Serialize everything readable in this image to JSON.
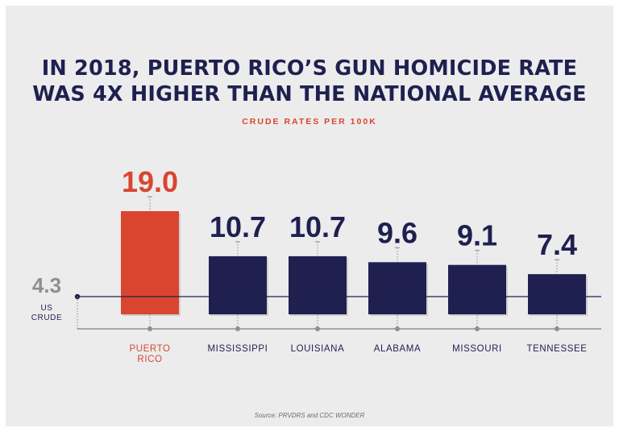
{
  "title_line1": "IN 2018, PUERTO RICO’S GUN HOMICIDE RATE",
  "title_line2": "WAS 4X HIGHER THAN THE NATIONAL AVERAGE",
  "subtitle": "CRUDE RATES PER 100K",
  "source": "Source: PRVDRS and CDC WONDER",
  "colors": {
    "highlight": "#d9452f",
    "bar": "#1f2050",
    "background": "#ececed"
  },
  "chart_data": {
    "type": "bar",
    "title": "IN 2018, PUERTO RICO’S GUN HOMICIDE RATE WAS 4X HIGHER THAN THE NATIONAL AVERAGE",
    "subtitle": "CRUDE RATES PER 100K",
    "categories": [
      [
        "PUERTO",
        "RICO"
      ],
      [
        "MISSISSIPPI"
      ],
      [
        "LOUISIANA"
      ],
      [
        "ALABAMA"
      ],
      [
        "MISSOURI"
      ],
      [
        "TENNESSEE"
      ]
    ],
    "values": [
      19.0,
      10.7,
      10.7,
      9.6,
      9.1,
      7.4
    ],
    "value_labels": [
      "19.0",
      "10.7",
      "10.7",
      "9.6",
      "9.1",
      "7.4"
    ],
    "highlight_index": 0,
    "reference_line": {
      "value": 4.3,
      "label": "4.3",
      "caption": [
        "US",
        "CRUDE"
      ]
    },
    "ylim": [
      0,
      19.0
    ],
    "grid": false,
    "legend": "none"
  }
}
